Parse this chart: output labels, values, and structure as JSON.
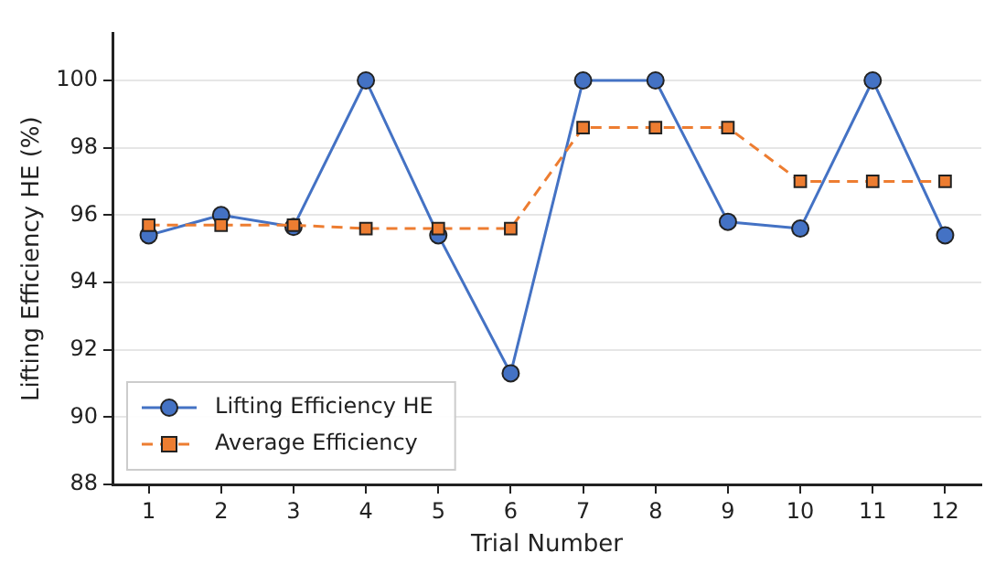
{
  "chart_data": {
    "type": "line",
    "xlabel": "Trial Number",
    "ylabel": "Lifting Efficiency HE (%)",
    "x": [
      1,
      2,
      3,
      4,
      5,
      6,
      7,
      8,
      9,
      10,
      11,
      12
    ],
    "series": [
      {
        "name": "Lifting Efficiency HE",
        "color": "#4472c4",
        "values": [
          95.4,
          96.0,
          95.65,
          100,
          95.4,
          91.3,
          100,
          100,
          95.8,
          95.6,
          100,
          95.4
        ],
        "marker": "circle",
        "line_style": "solid"
      },
      {
        "name": "Average Efficiency",
        "color": "#ed7d31",
        "values": [
          95.7,
          95.7,
          95.7,
          95.6,
          95.6,
          95.6,
          98.6,
          98.6,
          98.6,
          97.0,
          97.0,
          97.0
        ],
        "marker": "square",
        "line_style": "dashed"
      }
    ],
    "xlim": [
      0.5,
      12.5
    ],
    "xticks": [
      1,
      2,
      3,
      4,
      5,
      6,
      7,
      8,
      9,
      10,
      11,
      12
    ],
    "ylim": [
      88,
      101.4
    ],
    "yticks": [
      88,
      90,
      92,
      94,
      96,
      98,
      100
    ],
    "grid": "y",
    "legend": "bottom left"
  }
}
